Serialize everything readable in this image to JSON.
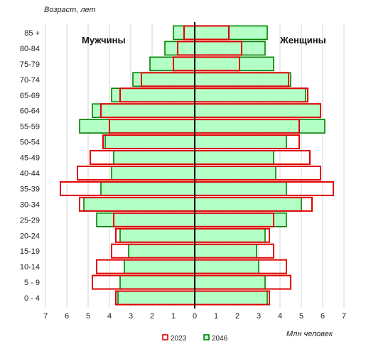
{
  "chart_data": {
    "type": "bar",
    "orientation": "horizontal-pyramid",
    "categories": [
      "0 - 4",
      "5 - 9",
      "10-14",
      "15-19",
      "20-24",
      "25-29",
      "30-34",
      "35-39",
      "40-44",
      "45-49",
      "50-54",
      "55-59",
      "60-64",
      "65-69",
      "70-74",
      "75-79",
      "80-84",
      "85 +"
    ],
    "series": [
      {
        "name": "2023",
        "color": "#e00000",
        "fill": "#ffffff",
        "men": [
          3.7,
          4.8,
          4.6,
          3.9,
          3.7,
          3.8,
          5.4,
          6.3,
          5.5,
          4.9,
          4.3,
          4.0,
          4.4,
          3.5,
          2.5,
          1.0,
          0.8,
          0.5
        ],
        "women": [
          3.5,
          4.5,
          4.3,
          3.7,
          3.5,
          3.7,
          5.5,
          6.5,
          5.9,
          5.4,
          4.9,
          4.9,
          5.9,
          5.3,
          4.4,
          2.1,
          2.2,
          1.6
        ]
      },
      {
        "name": "2046",
        "color": "#008000",
        "fill": "#b3ffc6",
        "men": [
          3.6,
          3.5,
          3.3,
          3.1,
          3.5,
          4.6,
          5.2,
          4.4,
          3.9,
          3.8,
          4.2,
          5.4,
          4.8,
          3.9,
          2.9,
          2.1,
          1.4,
          1.0
        ],
        "women": [
          3.4,
          3.3,
          3.0,
          2.9,
          3.3,
          4.3,
          5.0,
          4.3,
          3.8,
          3.7,
          4.3,
          6.1,
          5.9,
          5.2,
          4.5,
          3.7,
          3.3,
          3.4
        ]
      }
    ],
    "x_ticks": [
      "7",
      "6",
      "5",
      "4",
      "3",
      "2",
      "1",
      "0",
      "1",
      "2",
      "3",
      "4",
      "5",
      "6",
      "7"
    ],
    "xlim": [
      -7,
      7
    ],
    "xlabel": "Млн человек",
    "ylabel": "Возраст, лет",
    "left_label": "Мужчины",
    "right_label": "Женщины",
    "grid": "vertical",
    "legend_position": "bottom-center"
  }
}
